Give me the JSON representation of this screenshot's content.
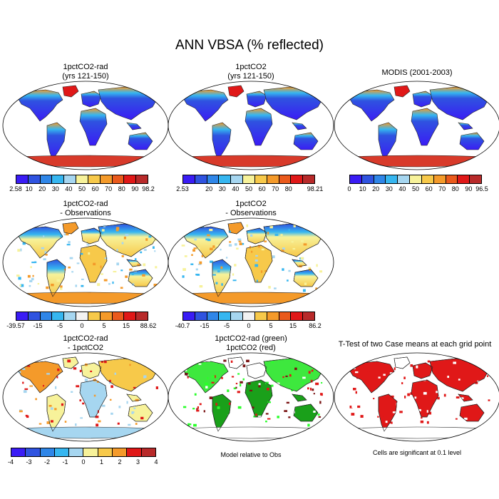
{
  "title": "ANN VBSA (% reflected)",
  "colors": {
    "abs_scale": [
      "#3a1cf5",
      "#2f53e0",
      "#2f86e8",
      "#36b6f0",
      "#a6d6f0",
      "#f7f29a",
      "#f7c94a",
      "#f49a2a",
      "#ea5a1c",
      "#e01818",
      "#b82a2a"
    ],
    "diff_scale": [
      "#3a1cf5",
      "#2f53e0",
      "#2f86e8",
      "#36b6f0",
      "#a6d6f0",
      "#f2f2f2",
      "#f7c94a",
      "#f49a2a",
      "#ea5a1c",
      "#e01818",
      "#b82a2a"
    ],
    "small_scale": [
      "#3a1cf5",
      "#2f53e0",
      "#2f86e8",
      "#36b6f0",
      "#a6d6f0",
      "#f7f29a",
      "#f7c94a",
      "#f49a2a",
      "#e01818",
      "#b82a2a"
    ]
  },
  "panels": {
    "p1": {
      "title1": "1pctCO2-rad",
      "title2": "(yrs 121-150)",
      "ticks": [
        "2.58",
        "10",
        "20",
        "30",
        "40",
        "50",
        "60",
        "70",
        "80",
        "90",
        "98.2"
      ]
    },
    "p2": {
      "title1": "1pctCO2",
      "title2": "(yrs 121-150)",
      "ticks": [
        "2.53",
        "",
        "20",
        "30",
        "40",
        "50",
        "60",
        "70",
        "80",
        "",
        "98.21"
      ]
    },
    "p3": {
      "title1": "MODIS (2001-2003)",
      "title2": "",
      "ticks": [
        "0",
        "10",
        "20",
        "30",
        "40",
        "50",
        "60",
        "70",
        "80",
        "90",
        "96.5"
      ]
    },
    "p4": {
      "title1": "1pctCO2-rad",
      "title2": "- Observations",
      "ticks": [
        "-39.57",
        "",
        "-15",
        "",
        "-5",
        "",
        "0",
        "",
        "5",
        "",
        "15",
        "",
        "88.62"
      ]
    },
    "p5": {
      "title1": "1pctCO2",
      "title2": "- Observations",
      "ticks": [
        "-40.7",
        "",
        "-15",
        "",
        "-5",
        "",
        "0",
        "",
        "5",
        "",
        "15",
        "",
        "86.2"
      ]
    },
    "p6": {
      "title1": "1pctCO2-rad",
      "title2": "- 1pctCO2",
      "ticks": [
        "-4",
        "-3",
        "-2",
        "-1",
        "0",
        "1",
        "2",
        "3",
        "4"
      ]
    },
    "p7": {
      "title1": "1pctCO2-rad (green)",
      "title2": "1pctCO2 (red)",
      "note": "Model relative to Obs"
    },
    "p8": {
      "title1": "T-Test of two Case means at each grid point",
      "title2": "",
      "note": "Cells are significant at 0.1 level"
    }
  }
}
